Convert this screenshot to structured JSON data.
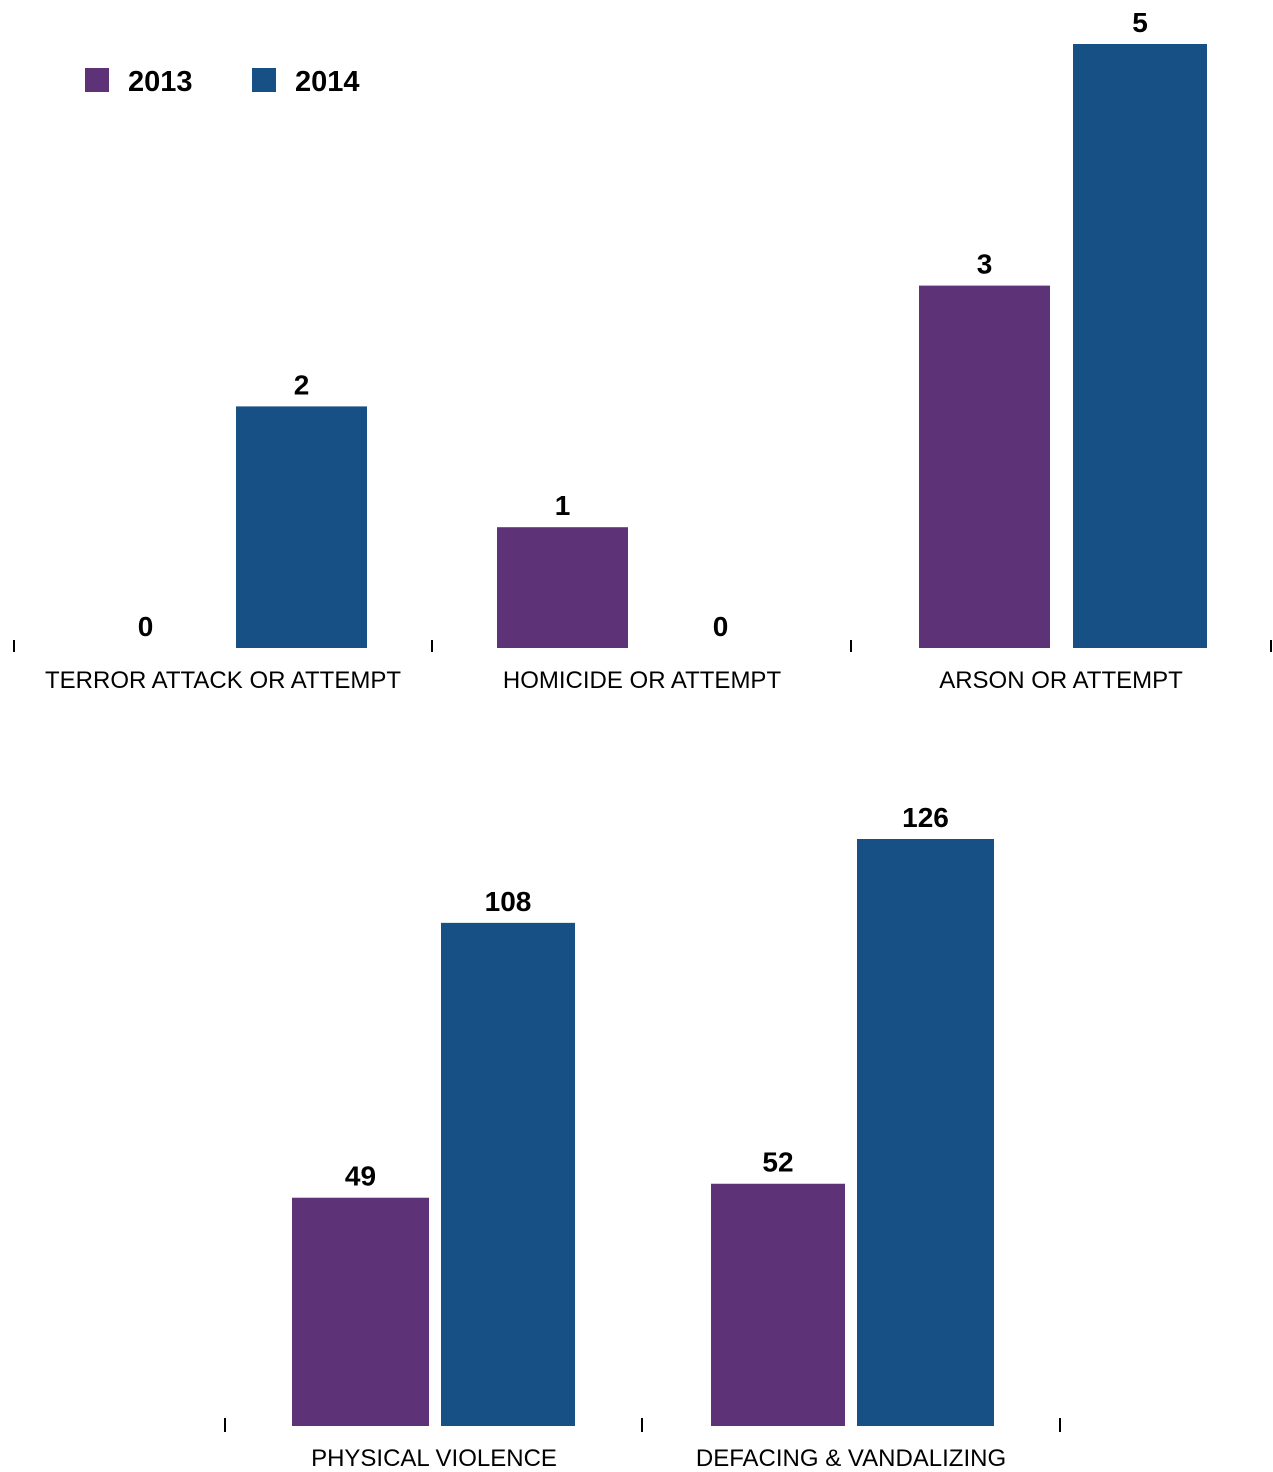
{
  "chart_data": [
    {
      "type": "bar",
      "categories": [
        "TERROR ATTACK OR ATTEMPT",
        "HOMICIDE OR ATTEMPT",
        "ARSON OR ATTEMPT"
      ],
      "series": [
        {
          "name": "2013",
          "values": [
            0,
            1,
            3
          ]
        },
        {
          "name": "2014",
          "values": [
            2,
            0,
            5
          ]
        }
      ],
      "ylim": [
        0,
        5
      ],
      "grid": false,
      "legend": "top-left"
    },
    {
      "type": "bar",
      "categories": [
        "PHYSICAL VIOLENCE",
        "DEFACING & VANDALIZING"
      ],
      "series": [
        {
          "name": "2013",
          "values": [
            49,
            52
          ]
        },
        {
          "name": "2014",
          "values": [
            108,
            126
          ]
        }
      ],
      "ylim": [
        0,
        126
      ],
      "grid": false
    }
  ],
  "legend": {
    "items": [
      {
        "label": "2013",
        "color": "#5e3277"
      },
      {
        "label": "2014",
        "color": "#175085"
      }
    ]
  },
  "colors": {
    "series_2013": "#5e3277",
    "series_2014": "#175085",
    "text": "#000000"
  }
}
